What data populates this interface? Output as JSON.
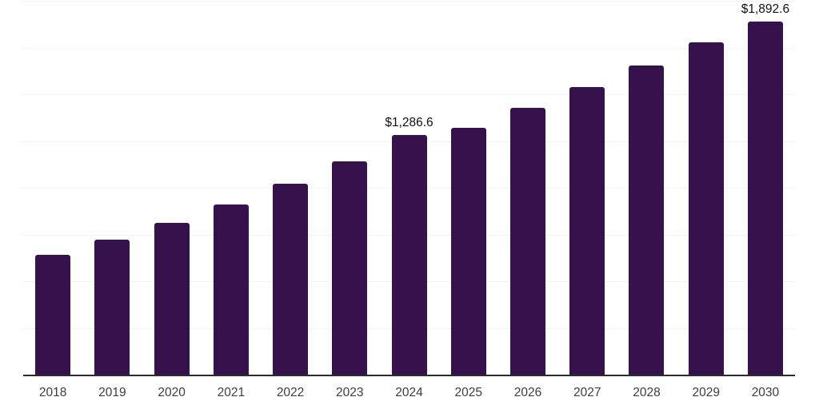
{
  "chart_data": {
    "type": "bar",
    "title": "",
    "categories": [
      "2018",
      "2019",
      "2020",
      "2021",
      "2022",
      "2023",
      "2024",
      "2025",
      "2026",
      "2027",
      "2028",
      "2029",
      "2030"
    ],
    "values": [
      644,
      725,
      816,
      915,
      1026,
      1145,
      1286.6,
      1324,
      1432,
      1543,
      1658,
      1782,
      1892.6
    ],
    "value_labels": [
      "",
      "",
      "",
      "",
      "",
      "",
      "$1,286.6",
      "",
      "",
      "",
      "",
      "",
      "$1,892.6"
    ],
    "ylim": [
      0,
      2000
    ],
    "gridline_interval": 250,
    "grid": true,
    "legend_position": "none",
    "xlabel": "",
    "ylabel": "",
    "colors": {
      "bar": "#35124b",
      "gridline": "#f3f3f3",
      "axis_line": "#2b2b2b",
      "tick_label": "#3d3d3d",
      "data_label": "#111111",
      "background": "#ffffff"
    }
  }
}
